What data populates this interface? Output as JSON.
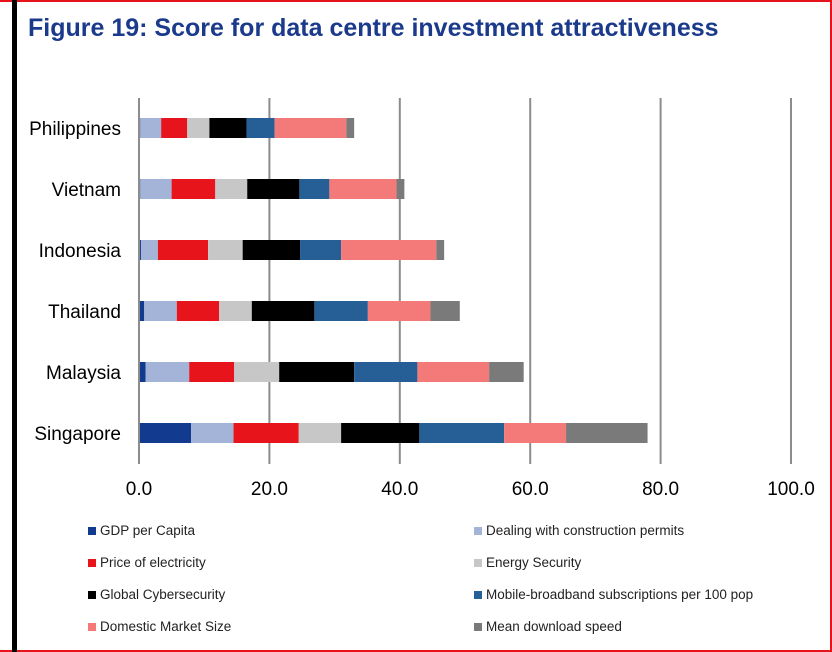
{
  "title": "Figure 19: Score for data centre investment attractiveness",
  "chart_data": {
    "type": "bar",
    "orientation": "horizontal",
    "stacked": true,
    "categories": [
      "Philippines",
      "Vietnam",
      "Indonesia",
      "Thailand",
      "Malaysia",
      "Singapore"
    ],
    "xlim": [
      0,
      100
    ],
    "xticks": [
      "0.0",
      "20.0",
      "40.0",
      "60.0",
      "80.0",
      "100.0"
    ],
    "xtick_values": [
      0,
      20,
      40,
      60,
      80,
      100
    ],
    "grid": "vertical",
    "legend_position": "bottom",
    "series": [
      {
        "name": "GDP per Capita",
        "color": "#123a8f",
        "values": [
          0.2,
          0.2,
          0.3,
          0.8,
          1.0,
          8.0
        ]
      },
      {
        "name": "Dealing with construction permits",
        "color": "#a4b3d8",
        "values": [
          3.2,
          4.8,
          2.6,
          5.0,
          6.7,
          6.5
        ]
      },
      {
        "name": "Price of electricity",
        "color": "#e8141c",
        "values": [
          4.0,
          6.7,
          7.7,
          6.5,
          6.9,
          10.0
        ]
      },
      {
        "name": "Energy Security",
        "color": "#c7c7c7",
        "values": [
          3.4,
          4.9,
          5.3,
          5.0,
          6.9,
          6.5
        ]
      },
      {
        "name": "Global Cybersecurity",
        "color": "#000000",
        "values": [
          5.7,
          8.0,
          8.8,
          9.6,
          11.5,
          12.0
        ]
      },
      {
        "name": "Mobile-broadband subscriptions per 100 pop",
        "color": "#265f96",
        "values": [
          4.3,
          4.6,
          6.3,
          8.2,
          9.7,
          13.0
        ]
      },
      {
        "name": "Domestic Market Size",
        "color": "#f47a7a",
        "values": [
          11.0,
          10.3,
          14.6,
          9.6,
          11.0,
          9.5
        ]
      },
      {
        "name": "Mean download speed",
        "color": "#7a7a7a",
        "values": [
          1.2,
          1.2,
          1.2,
          4.5,
          5.3,
          12.5
        ]
      }
    ]
  }
}
